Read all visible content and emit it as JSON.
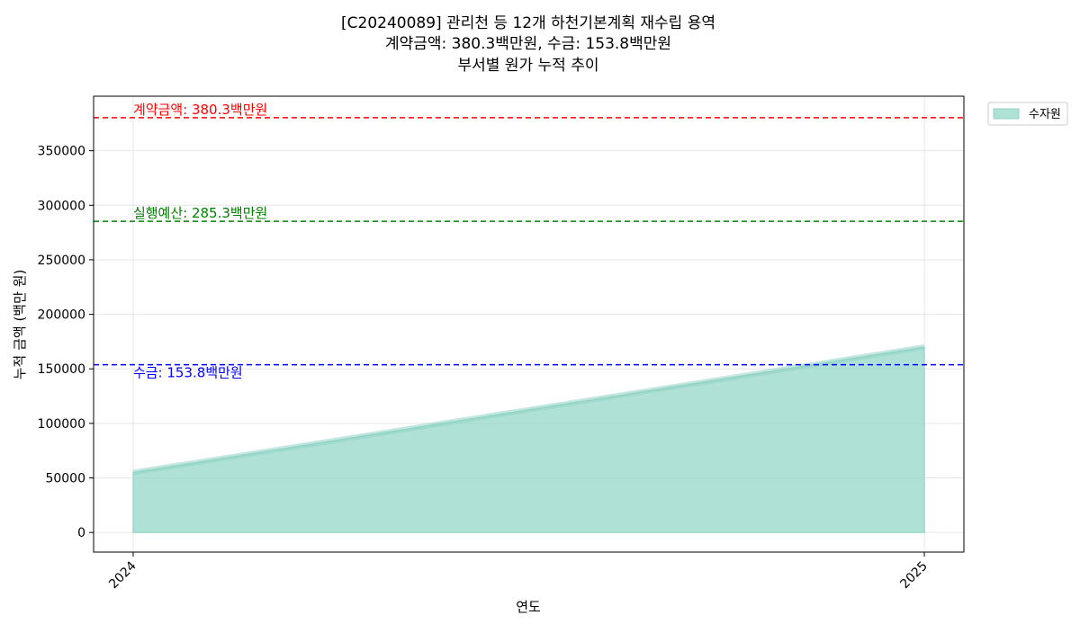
{
  "chart_data": {
    "type": "area",
    "title_lines": [
      "[C20240089] 관리천 등 12개 하천기본계획 재수립 용역",
      "계약금액: 380.3백만원, 수금: 153.8백만원",
      "부서별 원가 누적 추이"
    ],
    "xlabel": "연도",
    "ylabel": "누적 금액 (백만 원)",
    "x": [
      2024,
      2025
    ],
    "x_ticks": [
      "2024",
      "2025"
    ],
    "xlim": [
      2023.95,
      2025.05
    ],
    "ylim": [
      -18000,
      400000
    ],
    "y_ticks": [
      0,
      50000,
      100000,
      150000,
      200000,
      250000,
      300000,
      350000
    ],
    "grid": true,
    "legend_position": "outside-top-right",
    "series": [
      {
        "name": "수자원",
        "values": [
          55000,
          170000
        ],
        "color": "#8fd4c6"
      }
    ],
    "reference_lines": [
      {
        "label": "계약금액: 380.3백만원",
        "value": 380300,
        "color": "#ff0000",
        "label_position": "above"
      },
      {
        "label": "실행예산: 285.3백만원",
        "value": 285300,
        "color": "#008000",
        "label_position": "above"
      },
      {
        "label": "수금: 153.8백만원",
        "value": 153800,
        "color": "#0000ff",
        "label_position": "below"
      }
    ]
  }
}
